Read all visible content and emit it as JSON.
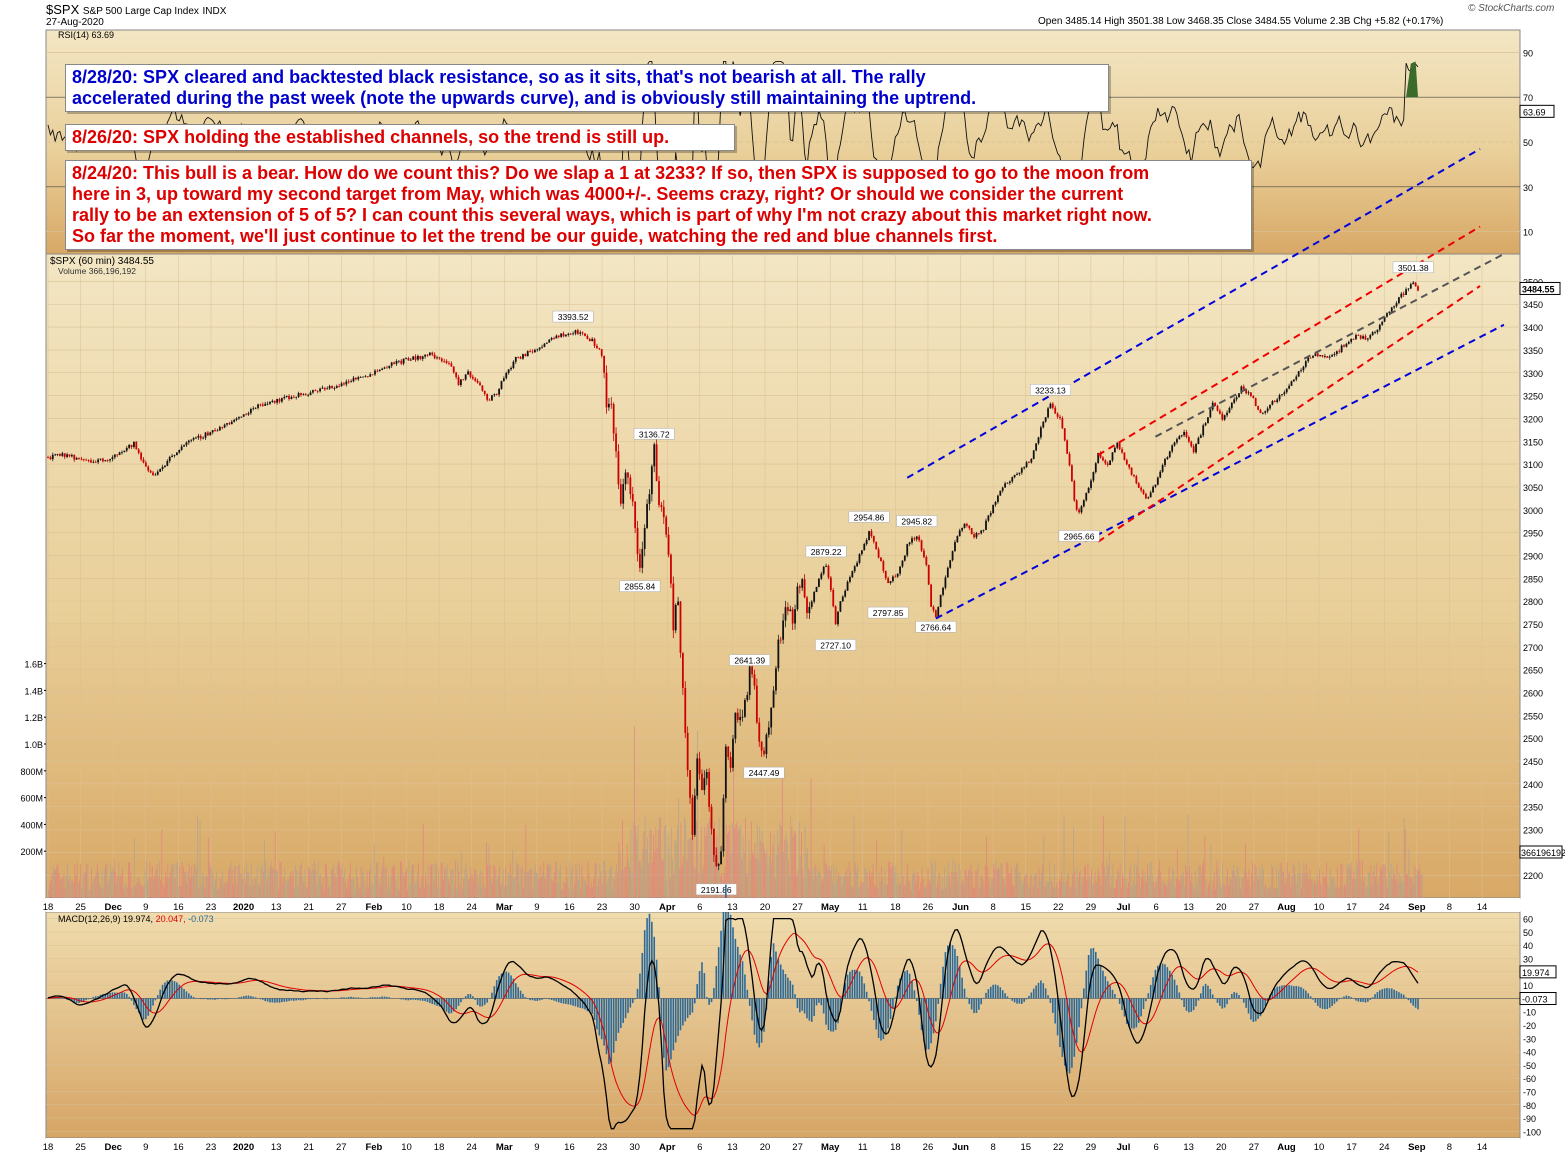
{
  "header": {
    "symbol": "$SPX",
    "name": "S&P 500 Large Cap Index",
    "exchange": "INDX",
    "date": "27-Aug-2020",
    "quote": "Open 3485.14  High 3501.38  Low 3468.35  Close 3484.55  Volume 2.3B  Chg +5.82 (+0.17%)",
    "brand": "© StockCharts.com"
  },
  "notes": [
    {
      "color": "#0000cc",
      "lines": [
        "8/28/20:  SPX cleared and backtested black resistance, so as it sits, that's not bearish at all.  The rally",
        "accelerated during the past week (note the upwards curve), and is obviously still maintaining the uptrend."
      ]
    },
    {
      "color": "#dd0000",
      "lines": [
        "8/26/20:  SPX holding the established channels, so the trend is still up."
      ]
    },
    {
      "color": "#dd0000",
      "lines": [
        "8/24/20:  This bull is a bear.  How do we count this?  Do we slap a 1 at 3233?  If so, then SPX is supposed to go to the moon from",
        "here in 3, up toward my second target from May, which was 4000+/-.  Seems crazy, right?  Or should we consider the current",
        "rally to be an extension of 5 of 5?  I can count this several ways, which is part of why I'm not crazy about this market right now.",
        "So far the moment, we'll just continue to let the trend be our guide, watching the red and blue channels first."
      ]
    }
  ],
  "chart_data": [
    {
      "type": "line",
      "panel": "rsi",
      "title": "RSI(14) 63.69",
      "ylim": [
        0,
        100
      ],
      "yticks": [
        10,
        30,
        50,
        70,
        90
      ],
      "last_value_label": "63.69",
      "shade_above": 70
    },
    {
      "type": "candlestick",
      "panel": "price",
      "title": "$SPX (60 min) 3484.55",
      "volume_label": "Volume 366,196,192",
      "ylim": [
        2150,
        3560
      ],
      "yticks": [
        2200,
        2250,
        2300,
        2350,
        2400,
        2450,
        2500,
        2550,
        2600,
        2650,
        2700,
        2750,
        2800,
        2850,
        2900,
        2950,
        3000,
        3050,
        3100,
        3150,
        3200,
        3250,
        3300,
        3350,
        3400,
        3450,
        3500
      ],
      "last_value_label": "3484.55",
      "volume_last_label": "366196192",
      "volume_ticks": [
        "200M",
        "400M",
        "600M",
        "800M",
        "1.0B",
        "1.2B",
        "1.4B",
        "1.6B"
      ],
      "volume_tick_values": [
        200,
        400,
        600,
        800,
        1000,
        1200,
        1400,
        1600
      ],
      "x_ticks": [
        "18",
        "25",
        "Dec",
        "9",
        "16",
        "23",
        "2020",
        "13",
        "21",
        "27",
        "Feb",
        "10",
        "18",
        "24",
        "Mar",
        "9",
        "16",
        "23",
        "30",
        "Apr",
        "6",
        "13",
        "20",
        "27",
        "May",
        "11",
        "18",
        "26",
        "Jun",
        "8",
        "15",
        "22",
        "29",
        "Jul",
        "6",
        "13",
        "20",
        "27",
        "Aug",
        "10",
        "17",
        "24",
        "Sep",
        "8",
        "14"
      ],
      "series": [
        {
          "name": "SPX",
          "points": [
            [
              0,
              3115
            ],
            [
              4,
              3120
            ],
            [
              8,
              3105
            ],
            [
              12,
              3110
            ],
            [
              16,
              3130
            ],
            [
              18,
              3145
            ],
            [
              20,
              3100
            ],
            [
              22,
              3075
            ],
            [
              24,
              3095
            ],
            [
              28,
              3140
            ],
            [
              32,
              3160
            ],
            [
              36,
              3180
            ],
            [
              40,
              3200
            ],
            [
              44,
              3230
            ],
            [
              48,
              3240
            ],
            [
              52,
              3250
            ],
            [
              56,
              3260
            ],
            [
              60,
              3270
            ],
            [
              64,
              3285
            ],
            [
              68,
              3300
            ],
            [
              72,
              3320
            ],
            [
              76,
              3330
            ],
            [
              80,
              3340
            ],
            [
              82,
              3330
            ],
            [
              84,
              3320
            ],
            [
              86,
              3275
            ],
            [
              88,
              3300
            ],
            [
              90,
              3280
            ],
            [
              92,
              3240
            ],
            [
              94,
              3255
            ],
            [
              96,
              3300
            ],
            [
              98,
              3330
            ],
            [
              100,
              3340
            ],
            [
              102,
              3350
            ],
            [
              104,
              3365
            ],
            [
              106,
              3380
            ],
            [
              108,
              3385
            ],
            [
              110,
              3390
            ],
            [
              112,
              3385
            ],
            [
              114,
              3370
            ],
            [
              116,
              3340
            ],
            [
              117,
              3240
            ],
            [
              118,
              3220
            ],
            [
              119,
              3120
            ],
            [
              120,
              3010
            ],
            [
              121,
              3090
            ],
            [
              122,
              3050
            ],
            [
              124,
              2870
            ],
            [
              125,
              2960
            ],
            [
              126,
              3050
            ],
            [
              127,
              3135
            ],
            [
              128,
              3020
            ],
            [
              129,
              2980
            ],
            [
              130,
              2900
            ],
            [
              131,
              2750
            ],
            [
              132,
              2800
            ],
            [
              133,
              2600
            ],
            [
              134,
              2430
            ],
            [
              135,
              2300
            ],
            [
              136,
              2470
            ],
            [
              137,
              2380
            ],
            [
              138,
              2410
            ],
            [
              139,
              2290
            ],
            [
              140,
              2210
            ],
            [
              141,
              2250
            ],
            [
              142,
              2480
            ],
            [
              143,
              2440
            ],
            [
              144,
              2560
            ],
            [
              145,
              2530
            ],
            [
              146,
              2580
            ],
            [
              147,
              2640
            ],
            [
              148,
              2610
            ],
            [
              149,
              2490
            ],
            [
              150,
              2470
            ],
            [
              151,
              2530
            ],
            [
              152,
              2600
            ],
            [
              153,
              2700
            ],
            [
              154,
              2760
            ],
            [
              155,
              2790
            ],
            [
              156,
              2740
            ],
            [
              157,
              2830
            ],
            [
              158,
              2860
            ],
            [
              159,
              2780
            ],
            [
              160,
              2800
            ],
            [
              162,
              2860
            ],
            [
              163,
              2880
            ],
            [
              164,
              2820
            ],
            [
              165,
              2750
            ],
            [
              166,
              2800
            ],
            [
              168,
              2850
            ],
            [
              170,
              2900
            ],
            [
              172,
              2950
            ],
            [
              174,
              2900
            ],
            [
              176,
              2840
            ],
            [
              178,
              2860
            ],
            [
              180,
              2920
            ],
            [
              182,
              2946
            ],
            [
              184,
              2880
            ],
            [
              185,
              2790
            ],
            [
              186,
              2770
            ],
            [
              188,
              2850
            ],
            [
              190,
              2930
            ],
            [
              192,
              2970
            ],
            [
              194,
              2940
            ],
            [
              196,
              2960
            ],
            [
              198,
              3010
            ],
            [
              200,
              3050
            ],
            [
              202,
              3070
            ],
            [
              204,
              3090
            ],
            [
              206,
              3110
            ],
            [
              208,
              3180
            ],
            [
              210,
              3230
            ],
            [
              212,
              3200
            ],
            [
              214,
              3100
            ],
            [
              215,
              3020
            ],
            [
              216,
              2990
            ],
            [
              218,
              3050
            ],
            [
              220,
              3120
            ],
            [
              222,
              3100
            ],
            [
              224,
              3150
            ],
            [
              226,
              3100
            ],
            [
              228,
              3060
            ],
            [
              230,
              3020
            ],
            [
              232,
              3060
            ],
            [
              234,
              3110
            ],
            [
              236,
              3150
            ],
            [
              238,
              3170
            ],
            [
              240,
              3130
            ],
            [
              242,
              3180
            ],
            [
              244,
              3230
            ],
            [
              246,
              3200
            ],
            [
              248,
              3230
            ],
            [
              250,
              3270
            ],
            [
              252,
              3250
            ],
            [
              254,
              3210
            ],
            [
              256,
              3230
            ],
            [
              258,
              3250
            ],
            [
              260,
              3270
            ],
            [
              262,
              3300
            ],
            [
              264,
              3330
            ],
            [
              266,
              3340
            ],
            [
              268,
              3335
            ],
            [
              270,
              3345
            ],
            [
              272,
              3365
            ],
            [
              274,
              3380
            ],
            [
              276,
              3375
            ],
            [
              278,
              3390
            ],
            [
              280,
              3420
            ],
            [
              282,
              3450
            ],
            [
              284,
              3475
            ],
            [
              286,
              3495
            ],
            [
              287,
              3484
            ]
          ]
        }
      ],
      "price_labels": [
        {
          "text": "3393.52",
          "x": 110,
          "y": 3393.52,
          "pos": "above"
        },
        {
          "text": "3136.72",
          "x": 127,
          "y": 3136.72,
          "pos": "above"
        },
        {
          "text": "2855.84",
          "x": 124,
          "y": 2855.84,
          "pos": "below"
        },
        {
          "text": "2191.86",
          "x": 140,
          "y": 2191.86,
          "pos": "below"
        },
        {
          "text": "2641.39",
          "x": 147,
          "y": 2641.39,
          "pos": "above"
        },
        {
          "text": "2447.49",
          "x": 150,
          "y": 2447.49,
          "pos": "below"
        },
        {
          "text": "2879.22",
          "x": 163,
          "y": 2879.22,
          "pos": "above"
        },
        {
          "text": "2727.10",
          "x": 165,
          "y": 2727.1,
          "pos": "below"
        },
        {
          "text": "2954.86",
          "x": 172,
          "y": 2954.86,
          "pos": "above"
        },
        {
          "text": "2797.85",
          "x": 176,
          "y": 2797.85,
          "pos": "below"
        },
        {
          "text": "2945.82",
          "x": 182,
          "y": 2945.82,
          "pos": "above"
        },
        {
          "text": "2766.64",
          "x": 186,
          "y": 2766.64,
          "pos": "below"
        },
        {
          "text": "3233.13",
          "x": 210,
          "y": 3233.13,
          "pos": "above"
        },
        {
          "text": "2965.66",
          "x": 216,
          "y": 2965.66,
          "pos": "below"
        },
        {
          "text": "3501.38",
          "x": 286,
          "y": 3501.38,
          "pos": "above"
        }
      ],
      "trendlines": [
        {
          "color": "#0000dd",
          "from": [
            180,
            3070
          ],
          "to": [
            300,
            3790
          ]
        },
        {
          "color": "#0000dd",
          "from": [
            186,
            2762
          ],
          "to": [
            305,
            3405
          ]
        },
        {
          "color": "#ee0000",
          "from": [
            220,
            3120
          ],
          "to": [
            300,
            3620
          ]
        },
        {
          "color": "#ee0000",
          "from": [
            220,
            2930
          ],
          "to": [
            300,
            3490
          ]
        },
        {
          "color": "#555555",
          "from": [
            232,
            3160
          ],
          "to": [
            305,
            3560
          ]
        }
      ]
    },
    {
      "type": "line",
      "panel": "macd",
      "title": "MACD(12,26,9) 19.974, 20.047, -0.073",
      "series_names": [
        "MACD",
        "Signal",
        "Histogram"
      ],
      "value_labels": [
        "19.974",
        "20.047",
        "-0.073"
      ],
      "ylim": [
        -105,
        65
      ],
      "yticks": [
        60,
        50,
        40,
        30,
        20,
        10,
        0,
        -10,
        -20,
        -30,
        -40,
        -50,
        -60,
        -70,
        -80,
        -90,
        -100
      ],
      "last_value_labels": [
        "19.974",
        "-0.073"
      ]
    }
  ]
}
